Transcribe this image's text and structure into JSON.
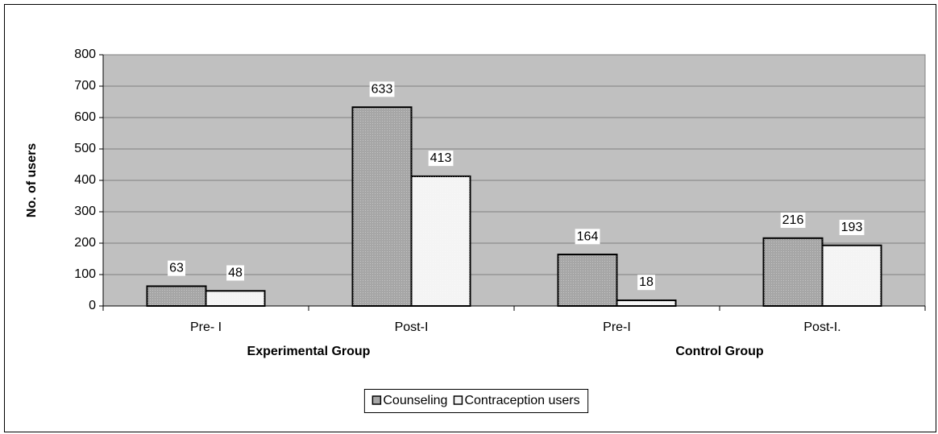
{
  "chart_data": {
    "type": "bar",
    "categories": [
      "Pre- I",
      "Post-I",
      "Pre-I",
      "Post-I."
    ],
    "group_labels": [
      "Experimental Group",
      "Control Group"
    ],
    "y_label": "No. of users",
    "series": [
      {
        "name": "Counseling",
        "color": "#a6a6a6",
        "values": [
          63,
          633,
          164,
          216
        ]
      },
      {
        "name": "Contraception users",
        "color": "#f4f4f4",
        "values": [
          48,
          413,
          18,
          193
        ]
      }
    ],
    "ylim": [
      0,
      800
    ],
    "yticks": [
      0,
      100,
      200,
      300,
      400,
      500,
      600,
      700,
      800
    ],
    "grid": true,
    "legend": "bottom",
    "plot_background": "#c0c0c0"
  }
}
